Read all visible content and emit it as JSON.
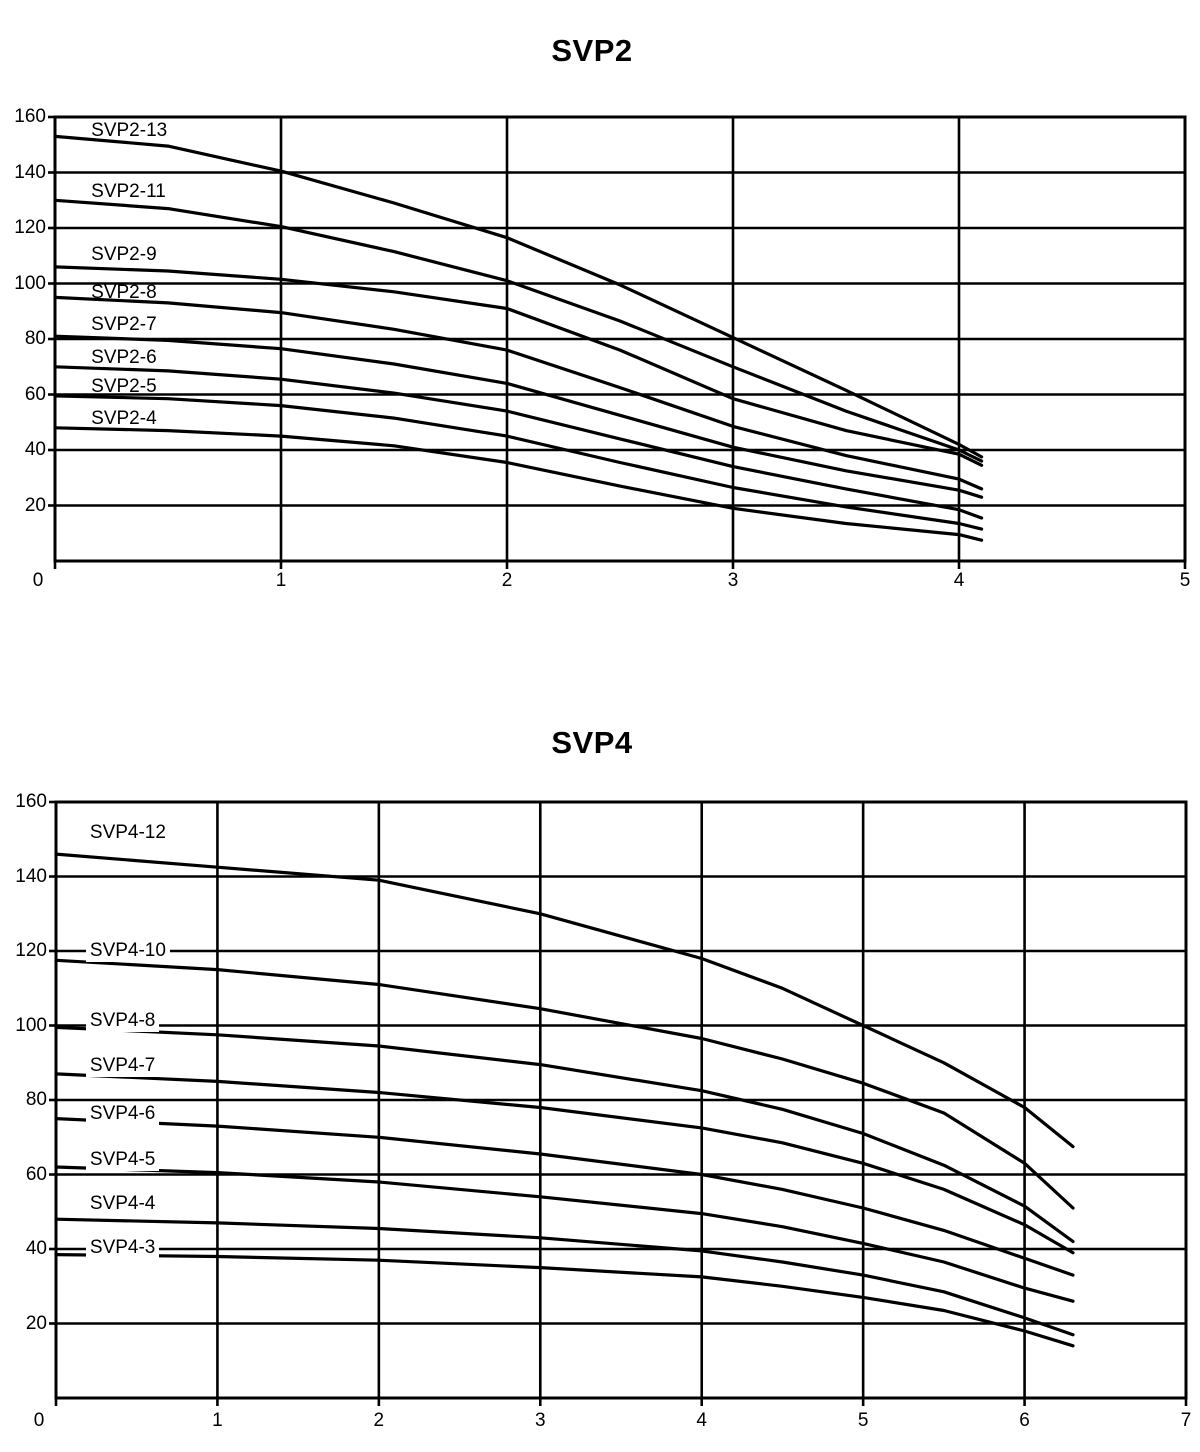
{
  "page": {
    "background": "#ffffff",
    "text_color": "#000000"
  },
  "chart_data": [
    {
      "title": "SVP2",
      "type": "line",
      "xlabel": "",
      "ylabel": "",
      "xlim": [
        0,
        5
      ],
      "ylim": [
        0,
        160
      ],
      "grid": true,
      "legend_position": "labels-on-curves",
      "color": "#000000",
      "x_ticks": [
        "0",
        "1",
        "2",
        "3",
        "4",
        "5"
      ],
      "y_ticks": [
        "20",
        "40",
        "60",
        "80",
        "100",
        "120",
        "140",
        "160"
      ],
      "series": [
        {
          "name": "SVP2-13",
          "label_at": [
            0.16,
            155.0
          ],
          "points": [
            [
              0,
              153
            ],
            [
              0.5,
              149.5
            ],
            [
              1,
              140.5
            ],
            [
              1.5,
              129
            ],
            [
              2,
              116.5
            ],
            [
              2.5,
              99.5
            ],
            [
              3,
              80.5
            ],
            [
              3.5,
              61.5
            ],
            [
              4,
              42
            ],
            [
              4.1,
              37.5
            ]
          ]
        },
        {
          "name": "SVP2-11",
          "label_at": [
            0.16,
            133.0
          ],
          "points": [
            [
              0,
              130
            ],
            [
              0.5,
              127
            ],
            [
              1,
              120.5
            ],
            [
              1.5,
              111.5
            ],
            [
              2,
              101
            ],
            [
              2.5,
              86.5
            ],
            [
              3,
              70
            ],
            [
              3.5,
              54
            ],
            [
              4,
              40
            ],
            [
              4.1,
              36
            ]
          ]
        },
        {
          "name": "SVP2-9",
          "label_at": [
            0.16,
            110.3
          ],
          "points": [
            [
              0,
              106
            ],
            [
              0.5,
              104.5
            ],
            [
              1,
              101.5
            ],
            [
              1.5,
              97
            ],
            [
              2,
              91
            ],
            [
              2.5,
              76
            ],
            [
              3,
              58.5
            ],
            [
              3.5,
              47
            ],
            [
              4,
              38.5
            ],
            [
              4.1,
              34.5
            ]
          ]
        },
        {
          "name": "SVP2-8",
          "label_at": [
            0.16,
            96.6
          ],
          "points": [
            [
              0,
              95
            ],
            [
              0.5,
              93
            ],
            [
              1,
              89.5
            ],
            [
              1.5,
              83.5
            ],
            [
              2,
              76
            ],
            [
              2.5,
              62.5
            ],
            [
              3,
              48.5
            ],
            [
              3.5,
              38
            ],
            [
              4,
              29.5
            ],
            [
              4.1,
              26
            ]
          ]
        },
        {
          "name": "SVP2-7",
          "label_at": [
            0.16,
            85.0
          ],
          "points": [
            [
              0,
              81
            ],
            [
              0.5,
              79.5
            ],
            [
              1,
              76.5
            ],
            [
              1.5,
              71
            ],
            [
              2,
              64
            ],
            [
              2.5,
              52.5
            ],
            [
              3,
              41
            ],
            [
              3.5,
              32.5
            ],
            [
              4,
              25.5
            ],
            [
              4.1,
              23
            ]
          ]
        },
        {
          "name": "SVP2-6",
          "label_at": [
            0.16,
            73.2
          ],
          "points": [
            [
              0,
              70
            ],
            [
              0.5,
              68.5
            ],
            [
              1,
              65.5
            ],
            [
              1.5,
              60.5
            ],
            [
              2,
              54
            ],
            [
              2.5,
              44
            ],
            [
              3,
              34
            ],
            [
              3.5,
              26
            ],
            [
              4,
              18.5
            ],
            [
              4.1,
              15.5
            ]
          ]
        },
        {
          "name": "SVP2-5",
          "label_at": [
            0.16,
            62.7
          ],
          "points": [
            [
              0,
              59.5
            ],
            [
              0.5,
              58.5
            ],
            [
              1,
              56
            ],
            [
              1.5,
              51.5
            ],
            [
              2,
              45
            ],
            [
              2.5,
              35.5
            ],
            [
              3,
              26.5
            ],
            [
              3.5,
              19.5
            ],
            [
              4,
              13.5
            ],
            [
              4.1,
              11.5
            ]
          ]
        },
        {
          "name": "SVP2-4",
          "label_at": [
            0.16,
            51.2
          ],
          "points": [
            [
              0,
              48
            ],
            [
              0.5,
              47
            ],
            [
              1,
              45
            ],
            [
              1.5,
              41.5
            ],
            [
              2,
              35.5
            ],
            [
              2.5,
              27
            ],
            [
              3,
              19
            ],
            [
              3.5,
              13.5
            ],
            [
              4,
              9.5
            ],
            [
              4.1,
              7.5
            ]
          ]
        }
      ]
    },
    {
      "title": "SVP4",
      "type": "line",
      "xlabel": "",
      "ylabel": "",
      "xlim": [
        0,
        7
      ],
      "ylim": [
        0,
        160
      ],
      "grid": true,
      "legend_position": "labels-on-curves",
      "color": "#000000",
      "x_ticks": [
        "0",
        "1",
        "2",
        "3",
        "4",
        "5",
        "6",
        "7"
      ],
      "y_ticks": [
        "20",
        "40",
        "60",
        "80",
        "100",
        "120",
        "140",
        "160"
      ],
      "series": [
        {
          "name": "SVP4-12",
          "label_at": [
            0.21,
            151.7
          ],
          "points": [
            [
              0,
              146
            ],
            [
              1,
              142.5
            ],
            [
              2,
              139
            ],
            [
              3,
              130
            ],
            [
              4,
              118
            ],
            [
              4.5,
              110
            ],
            [
              5,
              100
            ],
            [
              5.5,
              90
            ],
            [
              6,
              78
            ],
            [
              6.3,
              67.5
            ]
          ]
        },
        {
          "name": "SVP4-10",
          "label_at": [
            0.21,
            120.0
          ],
          "points": [
            [
              0,
              117.5
            ],
            [
              1,
              115
            ],
            [
              2,
              111
            ],
            [
              3,
              104.5
            ],
            [
              4,
              96.5
            ],
            [
              4.5,
              91
            ],
            [
              5,
              84.5
            ],
            [
              5.5,
              76.5
            ],
            [
              6,
              63
            ],
            [
              6.3,
              51
            ]
          ]
        },
        {
          "name": "SVP4-8",
          "label_at": [
            0.21,
            101.2
          ],
          "points": [
            [
              0,
              99.5
            ],
            [
              1,
              97.5
            ],
            [
              2,
              94.5
            ],
            [
              3,
              89.5
            ],
            [
              4,
              82.5
            ],
            [
              4.5,
              77.5
            ],
            [
              5,
              71
            ],
            [
              5.5,
              62.5
            ],
            [
              6,
              51.5
            ],
            [
              6.3,
              42
            ]
          ]
        },
        {
          "name": "SVP4-7",
          "label_at": [
            0.21,
            89.1
          ],
          "points": [
            [
              0,
              87
            ],
            [
              1,
              85
            ],
            [
              2,
              82
            ],
            [
              3,
              78
            ],
            [
              4,
              72.5
            ],
            [
              4.5,
              68.5
            ],
            [
              5,
              63
            ],
            [
              5.5,
              56
            ],
            [
              6,
              46.5
            ],
            [
              6.3,
              39
            ]
          ]
        },
        {
          "name": "SVP4-6",
          "label_at": [
            0.21,
            76.2
          ],
          "points": [
            [
              0,
              75
            ],
            [
              1,
              73
            ],
            [
              2,
              70
            ],
            [
              3,
              65.5
            ],
            [
              4,
              60
            ],
            [
              4.5,
              56
            ],
            [
              5,
              51
            ],
            [
              5.5,
              45
            ],
            [
              6,
              37.5
            ],
            [
              6.3,
              33
            ]
          ]
        },
        {
          "name": "SVP4-5",
          "label_at": [
            0.21,
            63.9
          ],
          "points": [
            [
              0,
              62
            ],
            [
              1,
              60.5
            ],
            [
              2,
              58
            ],
            [
              3,
              54
            ],
            [
              4,
              49.5
            ],
            [
              4.5,
              46
            ],
            [
              5,
              41.5
            ],
            [
              5.5,
              36.5
            ],
            [
              6,
              29.5
            ],
            [
              6.3,
              26
            ]
          ]
        },
        {
          "name": "SVP4-4",
          "label_at": [
            0.21,
            52.1
          ],
          "points": [
            [
              0,
              48
            ],
            [
              1,
              47
            ],
            [
              2,
              45.5
            ],
            [
              3,
              43
            ],
            [
              4,
              39.5
            ],
            [
              4.5,
              36.5
            ],
            [
              5,
              33
            ],
            [
              5.5,
              28.5
            ],
            [
              6,
              21.5
            ],
            [
              6.3,
              17
            ]
          ]
        },
        {
          "name": "SVP4-3",
          "label_at": [
            0.21,
            40.3
          ],
          "points": [
            [
              0,
              38.5
            ],
            [
              1,
              38
            ],
            [
              2,
              37
            ],
            [
              3,
              35
            ],
            [
              4,
              32.5
            ],
            [
              4.5,
              30
            ],
            [
              5,
              27
            ],
            [
              5.5,
              23.5
            ],
            [
              6,
              18
            ],
            [
              6.3,
              14
            ]
          ]
        }
      ]
    }
  ]
}
